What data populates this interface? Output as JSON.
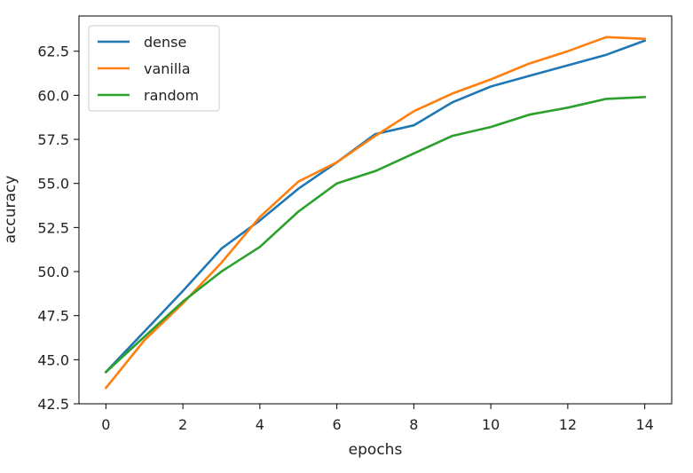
{
  "chart_data": {
    "type": "line",
    "title": "",
    "xlabel": "epochs",
    "ylabel": "accuracy",
    "xlim": [
      -0.7,
      14.7
    ],
    "ylim": [
      42.5,
      64.5
    ],
    "x_ticks": [
      0,
      2,
      4,
      6,
      8,
      10,
      12,
      14
    ],
    "y_ticks": [
      42.5,
      45.0,
      47.5,
      50.0,
      52.5,
      55.0,
      57.5,
      60.0,
      62.5
    ],
    "legend_position": "upper-left",
    "grid": false,
    "x": [
      0,
      1,
      2,
      3,
      4,
      5,
      6,
      7,
      8,
      9,
      10,
      11,
      12,
      13,
      14
    ],
    "series": [
      {
        "name": "dense",
        "color": "#1f77b4",
        "values": [
          44.3,
          46.6,
          48.9,
          51.3,
          52.9,
          54.7,
          56.2,
          57.8,
          58.3,
          59.6,
          60.5,
          61.1,
          61.7,
          62.3,
          63.1
        ]
      },
      {
        "name": "vanilla",
        "color": "#ff7f0e",
        "values": [
          43.4,
          46.1,
          48.2,
          50.5,
          53.1,
          55.1,
          56.2,
          57.7,
          59.1,
          60.1,
          60.9,
          61.8,
          62.5,
          63.3,
          63.2
        ]
      },
      {
        "name": "random",
        "color": "#2ca02c",
        "values": [
          44.3,
          46.3,
          48.3,
          50.0,
          51.4,
          53.4,
          55.0,
          55.7,
          56.7,
          57.7,
          58.2,
          58.9,
          59.3,
          59.8,
          59.9
        ]
      }
    ]
  }
}
